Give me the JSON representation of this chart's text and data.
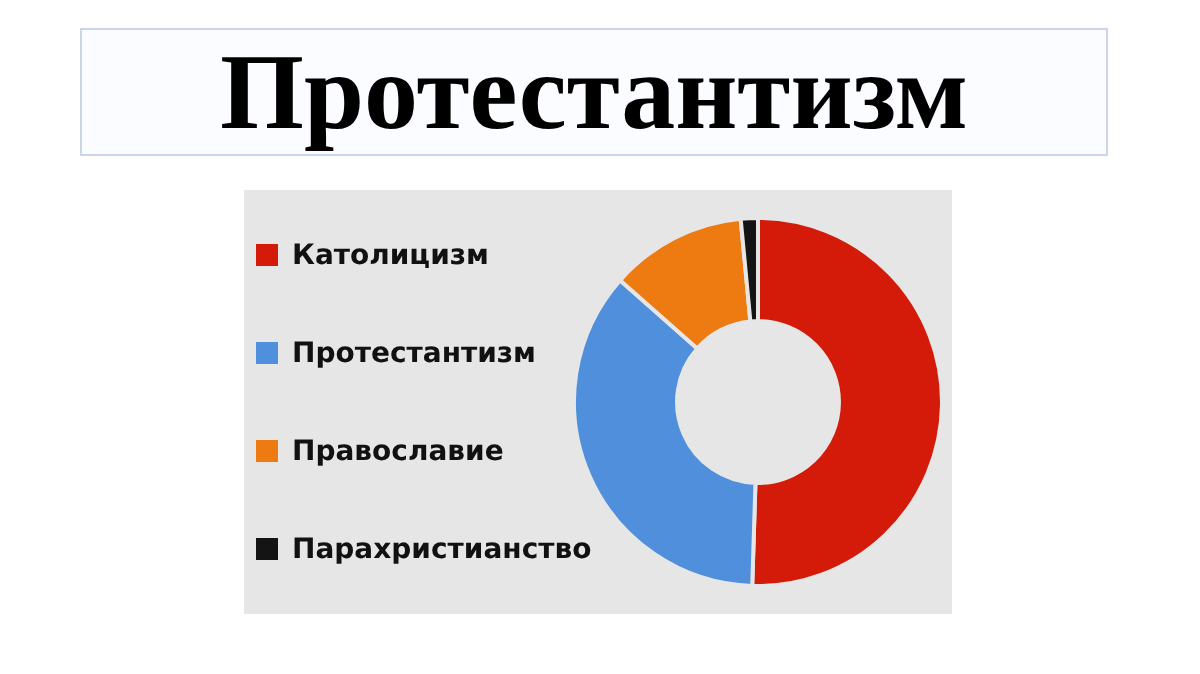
{
  "chart_data": {
    "type": "donut",
    "title": "Протестантизм",
    "categories": [
      "Католицизм",
      "Протестантизм",
      "Православие",
      "Парахристианство"
    ],
    "values": [
      50.5,
      36,
      12,
      1.5
    ],
    "colors": [
      "#d41a08",
      "#4f8fdb",
      "#ee7a12",
      "#141414"
    ],
    "legend": "left"
  }
}
